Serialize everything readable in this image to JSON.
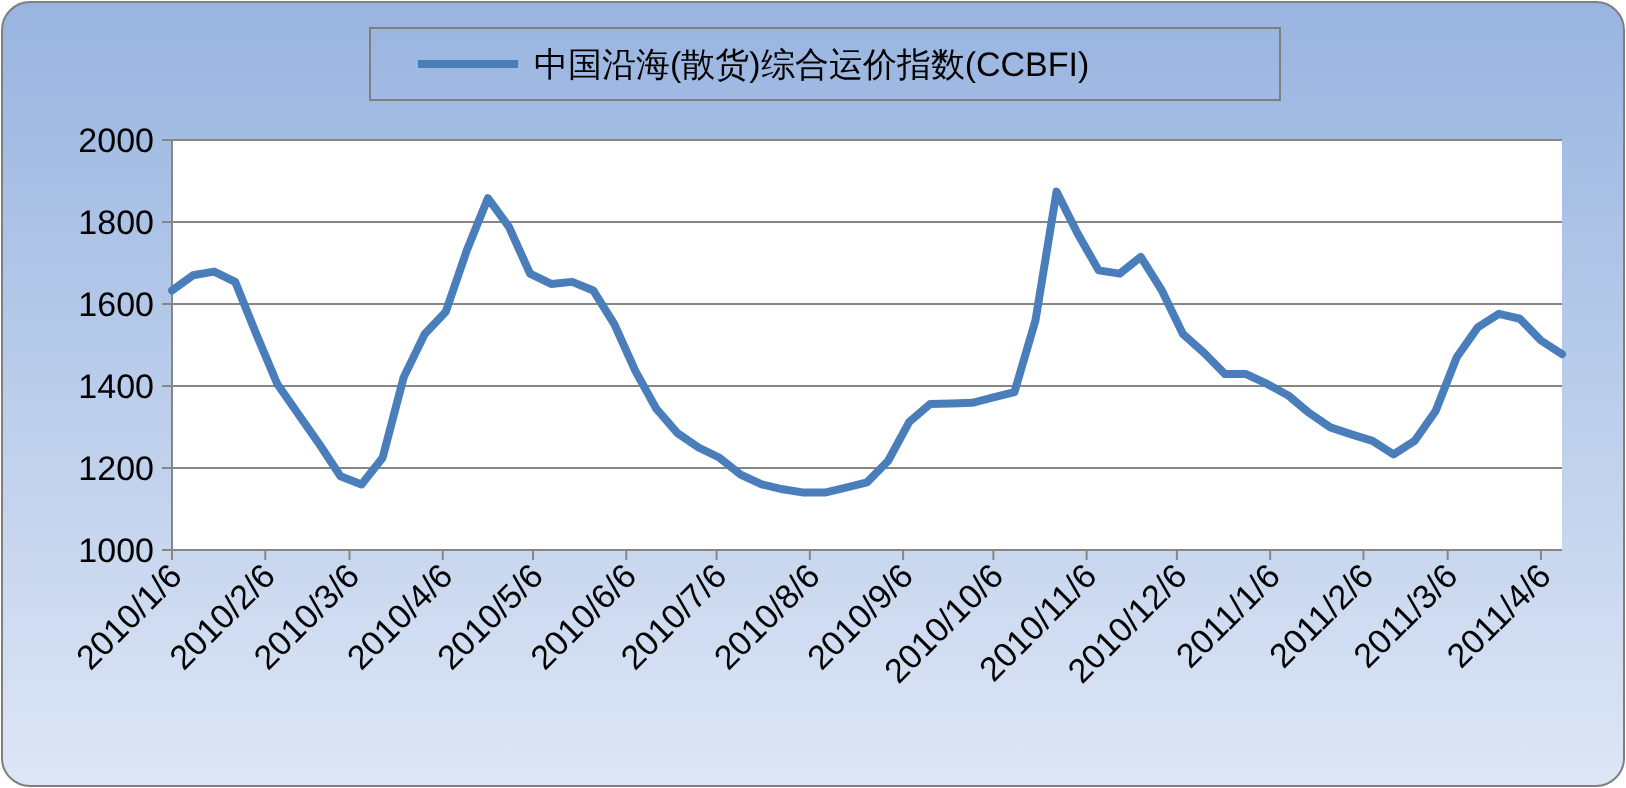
{
  "chart_data": {
    "type": "line",
    "x": [
      "2010-01-06",
      "2010-01-13",
      "2010-01-20",
      "2010-01-27",
      "2010-02-03",
      "2010-02-10",
      "2010-02-17",
      "2010-02-24",
      "2010-03-03",
      "2010-03-10",
      "2010-03-17",
      "2010-03-24",
      "2010-03-31",
      "2010-04-07",
      "2010-04-14",
      "2010-04-21",
      "2010-04-28",
      "2010-05-05",
      "2010-05-12",
      "2010-05-19",
      "2010-05-26",
      "2010-06-02",
      "2010-06-09",
      "2010-06-16",
      "2010-06-23",
      "2010-06-30",
      "2010-07-07",
      "2010-07-14",
      "2010-07-21",
      "2010-07-28",
      "2010-08-04",
      "2010-08-11",
      "2010-08-18",
      "2010-08-25",
      "2010-09-01",
      "2010-09-08",
      "2010-09-15",
      "2010-09-22",
      "2010-09-29",
      "2010-10-06",
      "2010-10-13",
      "2010-10-20",
      "2010-10-27",
      "2010-11-03",
      "2010-11-10",
      "2010-11-17",
      "2010-11-24",
      "2010-12-01",
      "2010-12-08",
      "2010-12-15",
      "2010-12-22",
      "2010-12-29",
      "2011-01-05",
      "2011-01-12",
      "2011-01-19",
      "2011-01-26",
      "2011-02-02",
      "2011-02-09",
      "2011-02-16",
      "2011-02-23",
      "2011-03-02",
      "2011-03-09",
      "2011-03-16",
      "2011-03-23",
      "2011-03-30",
      "2011-04-06",
      "2011-04-13"
    ],
    "series": [
      {
        "name": "中国沿海(散货)综合运价指数(CCBFI)",
        "color": "#4a7ebb",
        "values": [
          1633,
          1670,
          1679,
          1654,
          1527,
          1405,
          1331,
          1258,
          1180,
          1160,
          1225,
          1421,
          1527,
          1581,
          1731,
          1858,
          1788,
          1674,
          1649,
          1654,
          1633,
          1551,
          1437,
          1344,
          1285,
          1250,
          1225,
          1184,
          1160,
          1148,
          1140,
          1140,
          1152,
          1165,
          1217,
          1312,
          1356,
          1357,
          1359,
          1372,
          1385,
          1560,
          1874,
          1772,
          1682,
          1674,
          1715,
          1633,
          1527,
          1481,
          1429,
          1429,
          1405,
          1377,
          1334,
          1299,
          1282,
          1266,
          1233,
          1266,
          1339,
          1470,
          1543,
          1576,
          1564,
          1511,
          1478
        ]
      }
    ],
    "xlim": [
      "2010-01-06",
      "2011-04-13"
    ],
    "xticks": [
      {
        "value": "2010-01-06",
        "label": "2010/1/6"
      },
      {
        "value": "2010-02-06",
        "label": "2010/2/6"
      },
      {
        "value": "2010-03-06",
        "label": "2010/3/6"
      },
      {
        "value": "2010-04-06",
        "label": "2010/4/6"
      },
      {
        "value": "2010-05-06",
        "label": "2010/5/6"
      },
      {
        "value": "2010-06-06",
        "label": "2010/6/6"
      },
      {
        "value": "2010-07-06",
        "label": "2010/7/6"
      },
      {
        "value": "2010-08-06",
        "label": "2010/8/6"
      },
      {
        "value": "2010-09-06",
        "label": "2010/9/6"
      },
      {
        "value": "2010-10-06",
        "label": "2010/10/6"
      },
      {
        "value": "2010-11-06",
        "label": "2010/11/6"
      },
      {
        "value": "2010-12-06",
        "label": "2010/12/6"
      },
      {
        "value": "2011-01-06",
        "label": "2011/1/6"
      },
      {
        "value": "2011-02-06",
        "label": "2011/2/6"
      },
      {
        "value": "2011-03-06",
        "label": "2011/3/6"
      },
      {
        "value": "2011-04-06",
        "label": "2011/4/6"
      }
    ],
    "ylim": [
      1000,
      2000
    ],
    "yticks": [
      1000,
      1200,
      1400,
      1600,
      1800,
      2000
    ],
    "grid": "y",
    "legend": "top",
    "marker": "none",
    "line_style": "solid"
  }
}
